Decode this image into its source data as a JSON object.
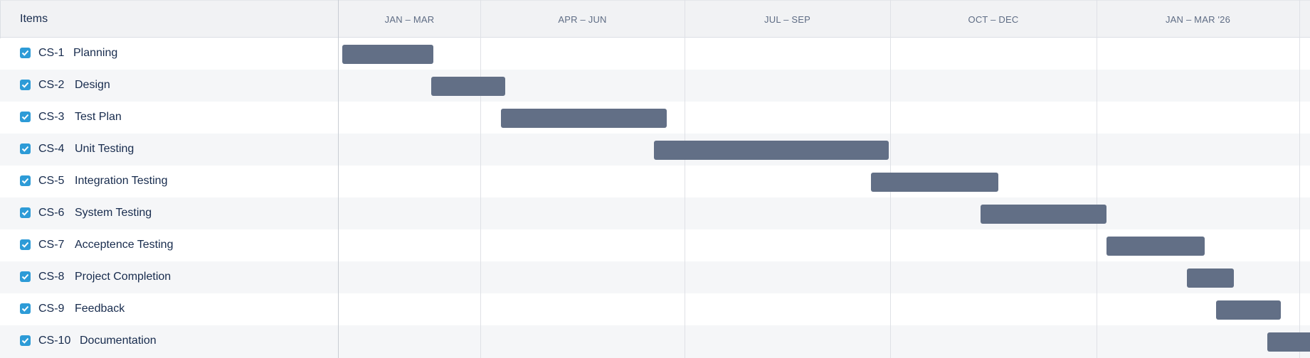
{
  "header": {
    "items_label": "Items",
    "periods": [
      "JAN – MAR",
      "APR – JUN",
      "JUL – SEP",
      "OCT – DEC",
      "JAN – MAR '26"
    ]
  },
  "rows": [
    {
      "key": "CS-1",
      "title": "Planning",
      "checked": true
    },
    {
      "key": "CS-2",
      "title": "Design",
      "checked": true
    },
    {
      "key": "CS-3",
      "title": "Test Plan",
      "checked": true
    },
    {
      "key": "CS-4",
      "title": "Unit Testing",
      "checked": true
    },
    {
      "key": "CS-5",
      "title": "Integration Testing",
      "checked": true
    },
    {
      "key": "CS-6",
      "title": "System Testing",
      "checked": true
    },
    {
      "key": "CS-7",
      "title": "Acceptence Testing",
      "checked": true
    },
    {
      "key": "CS-8",
      "title": "Project Completion",
      "checked": true
    },
    {
      "key": "CS-9",
      "title": "Feedback",
      "checked": true
    },
    {
      "key": "CS-10",
      "title": "Documentation",
      "checked": true
    }
  ],
  "colors": {
    "bar": "#626f86",
    "checkbox": "#2d9bd7",
    "header_bg": "#f1f2f4",
    "alt_row_bg": "#f5f6f8"
  }
}
